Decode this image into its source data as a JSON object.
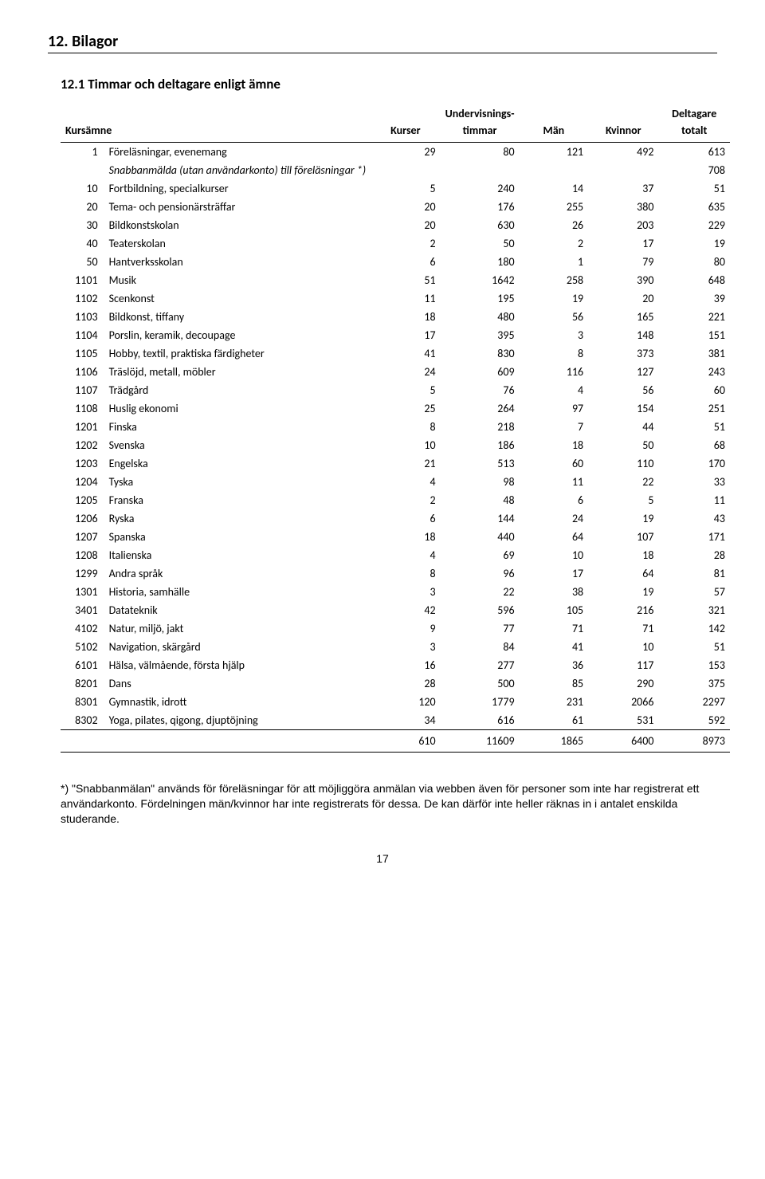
{
  "section_title": "12. Bilagor",
  "subsection_title": "12.1 Timmar och deltagare enligt ämne",
  "headers": {
    "kursämne": "Kursämne",
    "kurser": "Kurser",
    "timmar_top": "Undervisnings-",
    "timmar_bottom": "timmar",
    "män": "Män",
    "kvinnor": "Kvinnor",
    "deltagare_top": "Deltagare",
    "deltagare_bottom": "totalt"
  },
  "rows": [
    {
      "code": "1",
      "name": "Föreläsningar, evenemang",
      "kurser": "29",
      "timmar": "80",
      "män": "121",
      "kvinnor": "492",
      "totalt": "613",
      "ital": false
    },
    {
      "code": "",
      "name": "Snabbanmälda (utan användarkonto) till föreläsningar *)",
      "kurser": "",
      "timmar": "",
      "män": "",
      "kvinnor": "",
      "totalt": "708",
      "ital": true
    },
    {
      "code": "10",
      "name": "Fortbildning, specialkurser",
      "kurser": "5",
      "timmar": "240",
      "män": "14",
      "kvinnor": "37",
      "totalt": "51",
      "ital": false
    },
    {
      "code": "20",
      "name": "Tema- och pensionärsträffar",
      "kurser": "20",
      "timmar": "176",
      "män": "255",
      "kvinnor": "380",
      "totalt": "635",
      "ital": false
    },
    {
      "code": "30",
      "name": "Bildkonstskolan",
      "kurser": "20",
      "timmar": "630",
      "män": "26",
      "kvinnor": "203",
      "totalt": "229",
      "ital": false
    },
    {
      "code": "40",
      "name": "Teaterskolan",
      "kurser": "2",
      "timmar": "50",
      "män": "2",
      "kvinnor": "17",
      "totalt": "19",
      "ital": false
    },
    {
      "code": "50",
      "name": "Hantverksskolan",
      "kurser": "6",
      "timmar": "180",
      "män": "1",
      "kvinnor": "79",
      "totalt": "80",
      "ital": false
    },
    {
      "code": "1101",
      "name": "Musik",
      "kurser": "51",
      "timmar": "1642",
      "män": "258",
      "kvinnor": "390",
      "totalt": "648",
      "ital": false
    },
    {
      "code": "1102",
      "name": "Scenkonst",
      "kurser": "11",
      "timmar": "195",
      "män": "19",
      "kvinnor": "20",
      "totalt": "39",
      "ital": false
    },
    {
      "code": "1103",
      "name": "Bildkonst, tiffany",
      "kurser": "18",
      "timmar": "480",
      "män": "56",
      "kvinnor": "165",
      "totalt": "221",
      "ital": false
    },
    {
      "code": "1104",
      "name": "Porslin, keramik, decoupage",
      "kurser": "17",
      "timmar": "395",
      "män": "3",
      "kvinnor": "148",
      "totalt": "151",
      "ital": false
    },
    {
      "code": "1105",
      "name": "Hobby, textil, praktiska färdigheter",
      "kurser": "41",
      "timmar": "830",
      "män": "8",
      "kvinnor": "373",
      "totalt": "381",
      "ital": false
    },
    {
      "code": "1106",
      "name": "Träslöjd, metall, möbler",
      "kurser": "24",
      "timmar": "609",
      "män": "116",
      "kvinnor": "127",
      "totalt": "243",
      "ital": false
    },
    {
      "code": "1107",
      "name": "Trädgård",
      "kurser": "5",
      "timmar": "76",
      "män": "4",
      "kvinnor": "56",
      "totalt": "60",
      "ital": false
    },
    {
      "code": "1108",
      "name": "Huslig ekonomi",
      "kurser": "25",
      "timmar": "264",
      "män": "97",
      "kvinnor": "154",
      "totalt": "251",
      "ital": false
    },
    {
      "code": "1201",
      "name": "Finska",
      "kurser": "8",
      "timmar": "218",
      "män": "7",
      "kvinnor": "44",
      "totalt": "51",
      "ital": false
    },
    {
      "code": "1202",
      "name": "Svenska",
      "kurser": "10",
      "timmar": "186",
      "män": "18",
      "kvinnor": "50",
      "totalt": "68",
      "ital": false
    },
    {
      "code": "1203",
      "name": "Engelska",
      "kurser": "21",
      "timmar": "513",
      "män": "60",
      "kvinnor": "110",
      "totalt": "170",
      "ital": false
    },
    {
      "code": "1204",
      "name": "Tyska",
      "kurser": "4",
      "timmar": "98",
      "män": "11",
      "kvinnor": "22",
      "totalt": "33",
      "ital": false
    },
    {
      "code": "1205",
      "name": "Franska",
      "kurser": "2",
      "timmar": "48",
      "män": "6",
      "kvinnor": "5",
      "totalt": "11",
      "ital": false
    },
    {
      "code": "1206",
      "name": "Ryska",
      "kurser": "6",
      "timmar": "144",
      "män": "24",
      "kvinnor": "19",
      "totalt": "43",
      "ital": false
    },
    {
      "code": "1207",
      "name": "Spanska",
      "kurser": "18",
      "timmar": "440",
      "män": "64",
      "kvinnor": "107",
      "totalt": "171",
      "ital": false
    },
    {
      "code": "1208",
      "name": "Italienska",
      "kurser": "4",
      "timmar": "69",
      "män": "10",
      "kvinnor": "18",
      "totalt": "28",
      "ital": false
    },
    {
      "code": "1299",
      "name": "Andra språk",
      "kurser": "8",
      "timmar": "96",
      "män": "17",
      "kvinnor": "64",
      "totalt": "81",
      "ital": false
    },
    {
      "code": "1301",
      "name": "Historia, samhälle",
      "kurser": "3",
      "timmar": "22",
      "män": "38",
      "kvinnor": "19",
      "totalt": "57",
      "ital": false
    },
    {
      "code": "3401",
      "name": "Datateknik",
      "kurser": "42",
      "timmar": "596",
      "män": "105",
      "kvinnor": "216",
      "totalt": "321",
      "ital": false
    },
    {
      "code": "4102",
      "name": "Natur, miljö, jakt",
      "kurser": "9",
      "timmar": "77",
      "män": "71",
      "kvinnor": "71",
      "totalt": "142",
      "ital": false
    },
    {
      "code": "5102",
      "name": "Navigation, skärgård",
      "kurser": "3",
      "timmar": "84",
      "män": "41",
      "kvinnor": "10",
      "totalt": "51",
      "ital": false
    },
    {
      "code": "6101",
      "name": "Hälsa, välmående, första hjälp",
      "kurser": "16",
      "timmar": "277",
      "män": "36",
      "kvinnor": "117",
      "totalt": "153",
      "ital": false
    },
    {
      "code": "8201",
      "name": "Dans",
      "kurser": "28",
      "timmar": "500",
      "män": "85",
      "kvinnor": "290",
      "totalt": "375",
      "ital": false
    },
    {
      "code": "8301",
      "name": "Gymnastik, idrott",
      "kurser": "120",
      "timmar": "1779",
      "män": "231",
      "kvinnor": "2066",
      "totalt": "2297",
      "ital": false
    },
    {
      "code": "8302",
      "name": "Yoga, pilates, qigong, djuptöjning",
      "kurser": "34",
      "timmar": "616",
      "män": "61",
      "kvinnor": "531",
      "totalt": "592",
      "ital": false
    }
  ],
  "totals": {
    "kurser": "610",
    "timmar": "11609",
    "män": "1865",
    "kvinnor": "6400",
    "totalt": "8973"
  },
  "footnote": "*) \"Snabbanmälan\" används för föreläsningar för att möjliggöra anmälan via webben även för personer som inte har registrerat ett användarkonto. Fördelningen män/kvinnor har inte registrerats för dessa. De kan därför inte heller räknas in i antalet enskilda studerande.",
  "page_number": "17"
}
